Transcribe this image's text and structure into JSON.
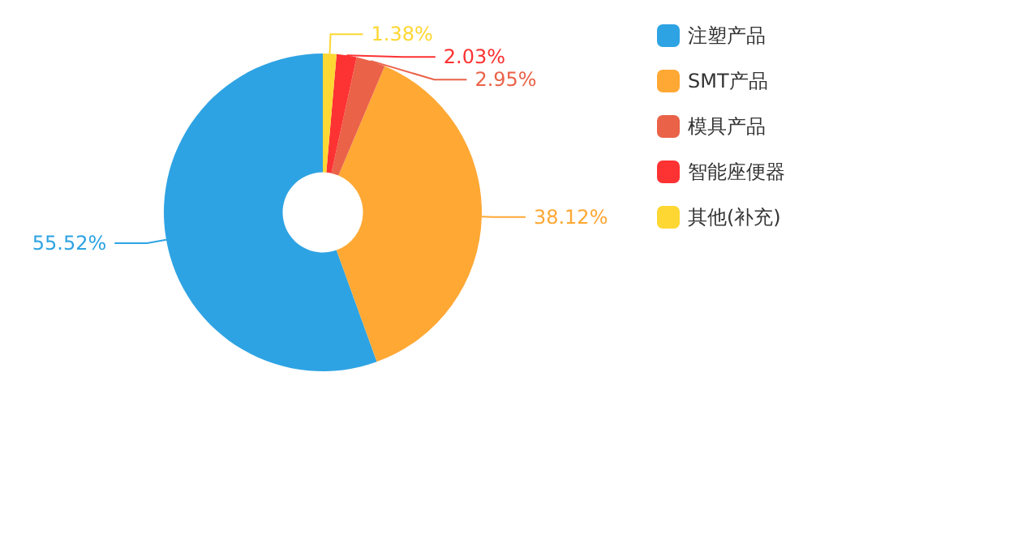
{
  "chart_data": {
    "type": "donut",
    "categories": [
      "注塑产品",
      "SMT产品",
      "模具产品",
      "智能座便器",
      "其他(补充)"
    ],
    "values": [
      55.52,
      38.12,
      2.95,
      2.03,
      1.38
    ],
    "value_labels": [
      "55.52%",
      "38.12%",
      "2.95%",
      "2.03%",
      "1.38%"
    ],
    "colors": [
      "#2ea3e3",
      "#ffa834",
      "#ea6248",
      "#fd3232",
      "#fed733"
    ],
    "legend": "top right"
  }
}
